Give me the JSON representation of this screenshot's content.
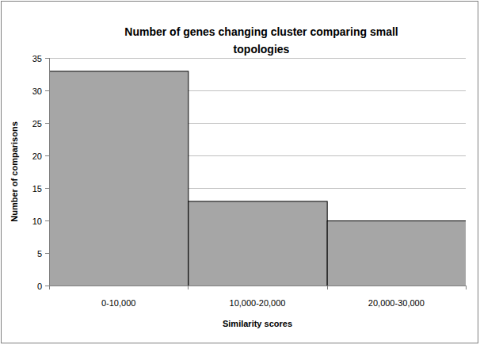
{
  "chart_data": {
    "type": "bar",
    "title": "Number of genes changing cluster comparing small topologies",
    "x_label": "Similarity scores",
    "y_label": "Number of comparisons",
    "categories": [
      "0-10,000",
      "10,000-20,000",
      "20,000-30,000"
    ],
    "values": [
      33,
      13,
      10
    ],
    "color": "#a6a6a6",
    "ylim": [
      0,
      35
    ],
    "yticks": [
      0,
      5,
      10,
      15,
      20,
      25,
      30,
      35
    ],
    "grid": true
  }
}
